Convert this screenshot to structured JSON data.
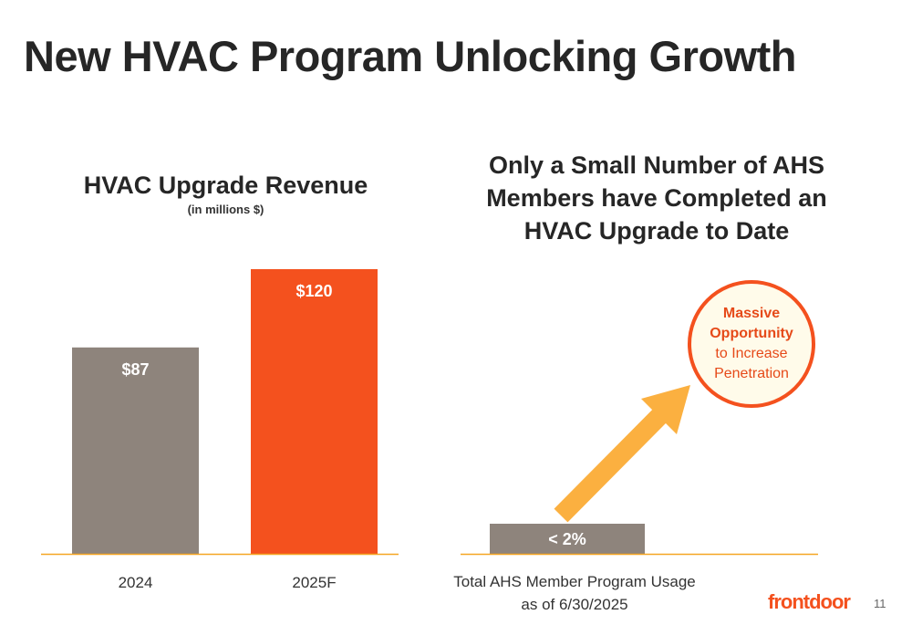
{
  "slide": {
    "title": "New HVAC Program Unlocking Growth",
    "page_number": "11",
    "logo": "frontdoor"
  },
  "revenue_chart": {
    "title": "HVAC Upgrade Revenue",
    "subtitle": "(in millions $)"
  },
  "usage_section": {
    "title_lines": [
      "Only a Small Number of AHS",
      "Members have Completed an",
      "HVAC Upgrade to Date"
    ],
    "x_label_lines": [
      "Total AHS Member Program Usage",
      "as of 6/30/2025"
    ],
    "opportunity": {
      "line1": "Massive",
      "line2": "Opportunity",
      "line3": "to Increase",
      "line4": "Penetration"
    }
  },
  "colors": {
    "gray_bar": "#8E847C",
    "orange_bar": "#F4511E",
    "axis": "#F5A623",
    "arrow": "#FBB040",
    "circle_border": "#F4511E"
  },
  "chart_data": [
    {
      "type": "bar",
      "title": "HVAC Upgrade Revenue",
      "subtitle": "(in millions $)",
      "categories": [
        "2024",
        "2025F"
      ],
      "values": [
        87,
        120
      ],
      "data_labels": [
        "$87",
        "$120"
      ],
      "ylim": [
        0,
        120
      ]
    },
    {
      "type": "bar",
      "title": "Only a Small Number of AHS Members have Completed an HVAC Upgrade to Date",
      "categories": [
        "Total AHS Member Program Usage as of 6/30/2025"
      ],
      "values": [
        2
      ],
      "data_labels": [
        "< 2%"
      ]
    }
  ]
}
